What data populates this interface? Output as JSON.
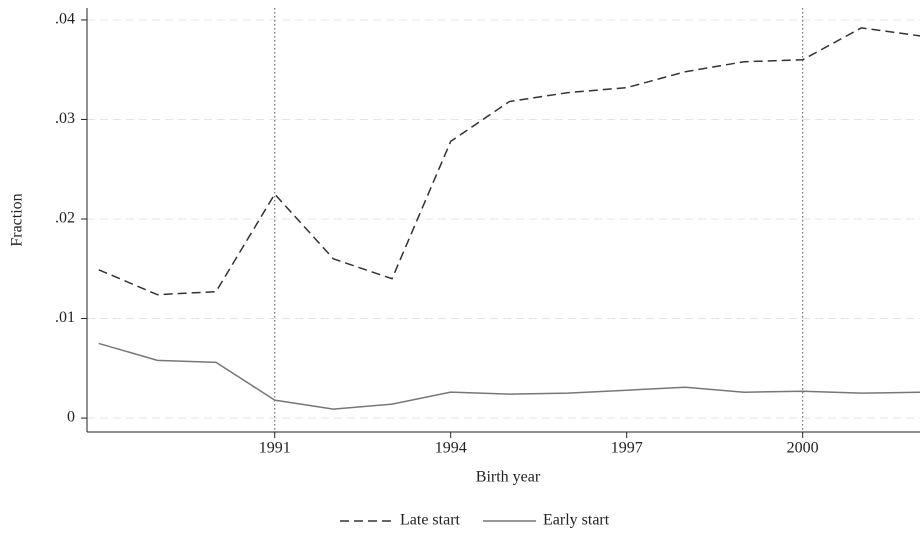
{
  "chart_data": {
    "type": "line",
    "x_label": "Birth year",
    "y_label": "Fraction",
    "x": [
      1988,
      1989,
      1990,
      1991,
      1992,
      1993,
      1994,
      1995,
      1996,
      1997,
      1998,
      1999,
      2000,
      2001,
      2002
    ],
    "series": [
      {
        "name": "Late start",
        "color": "#333333",
        "style": "dashed",
        "values": [
          0.0149,
          0.0124,
          0.0127,
          0.0225,
          0.016,
          0.014,
          0.0278,
          0.0318,
          0.0327,
          0.0332,
          0.0348,
          0.0358,
          0.036,
          0.0392,
          0.0384
        ]
      },
      {
        "name": "Early start",
        "color": "#777777",
        "style": "solid",
        "values": [
          0.0075,
          0.0058,
          0.0056,
          0.0018,
          0.0009,
          0.0014,
          0.0026,
          0.0024,
          0.0025,
          0.0028,
          0.0031,
          0.0026,
          0.0027,
          0.0025,
          0.0026
        ]
      }
    ],
    "xlim": [
      1987.8,
      2002
    ],
    "xticks": [
      1991,
      1994,
      1997,
      2000
    ],
    "ylim": [
      -0.0014,
      0.0412
    ],
    "yticks": [
      0,
      {
        "value": 0.01,
        "label": ".01"
      },
      {
        "value": 0.02,
        "label": ".02"
      },
      {
        "value": 0.03,
        "label": ".03"
      },
      {
        "value": 0.04,
        "label": ".04"
      }
    ],
    "vlines": [
      1991,
      2000
    ],
    "grid": true,
    "legend": "bottom"
  }
}
